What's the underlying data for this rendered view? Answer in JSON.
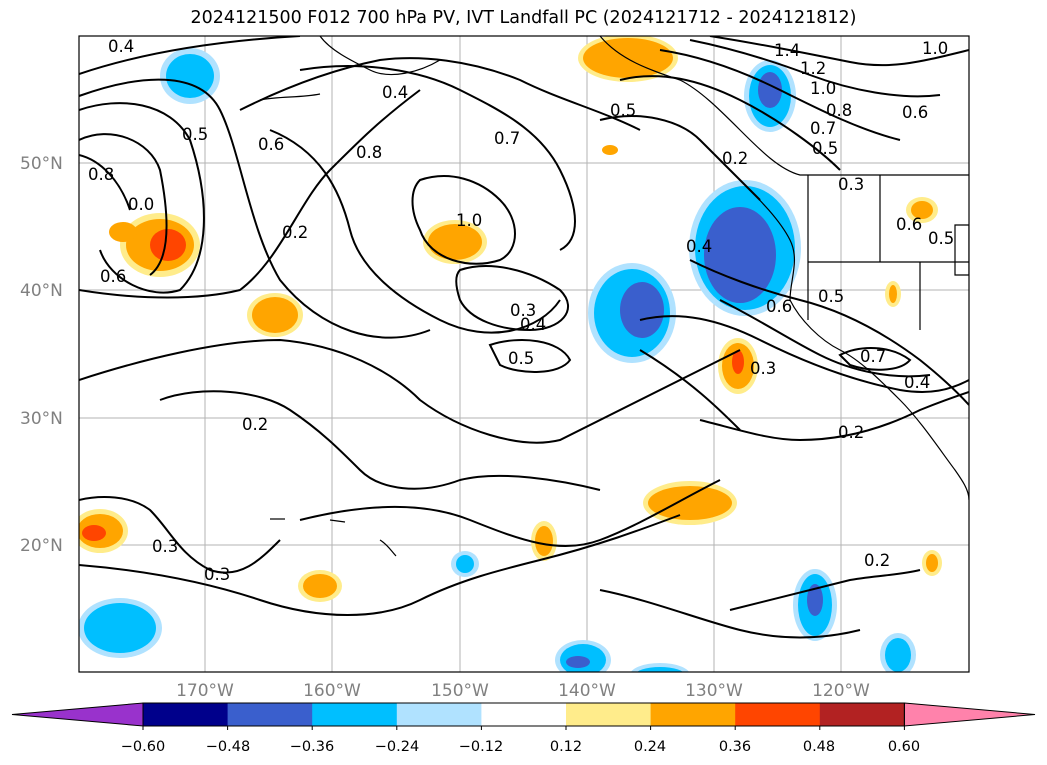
{
  "title": "2024121500 F012 700 hPa PV, IVT Landfall PC (2024121712 - 2024121812)",
  "axes": {
    "lat_labels": [
      "50°N",
      "40°N",
      "30°N",
      "20°N"
    ],
    "lon_labels": [
      "170°W",
      "160°W",
      "150°W",
      "140°W",
      "130°W",
      "120°W"
    ]
  },
  "contour_labels": [
    "0.4",
    "0.4",
    "0.5",
    "0.8",
    "0.0",
    "0.6",
    "0.6",
    "0.2",
    "0.8",
    "0.7",
    "1.0",
    "0.3",
    "0.4",
    "0.5",
    "0.2",
    "0.3",
    "0.3",
    "0.5",
    "1.4",
    "1.2",
    "1.0",
    "0.8",
    "0.7",
    "0.5",
    "0.6",
    "1.0",
    "0.2",
    "0.3",
    "0.4",
    "0.6",
    "0.5",
    "0.3",
    "0.7",
    "0.4",
    "0.2",
    "0.2",
    "0.6",
    "0.5"
  ],
  "colorbar": {
    "ticks": [
      "−0.60",
      "−0.48",
      "−0.36",
      "−0.24",
      "−0.12",
      "0.12",
      "0.24",
      "0.36",
      "0.48",
      "0.60"
    ],
    "colors": [
      "#9932cc",
      "#00008b",
      "#3a5fcd",
      "#00bfff",
      "#b0e2ff",
      "#ffffff",
      "#ffec8b",
      "#ffa500",
      "#ff4500",
      "#b22222",
      "#ff82ab"
    ]
  }
}
